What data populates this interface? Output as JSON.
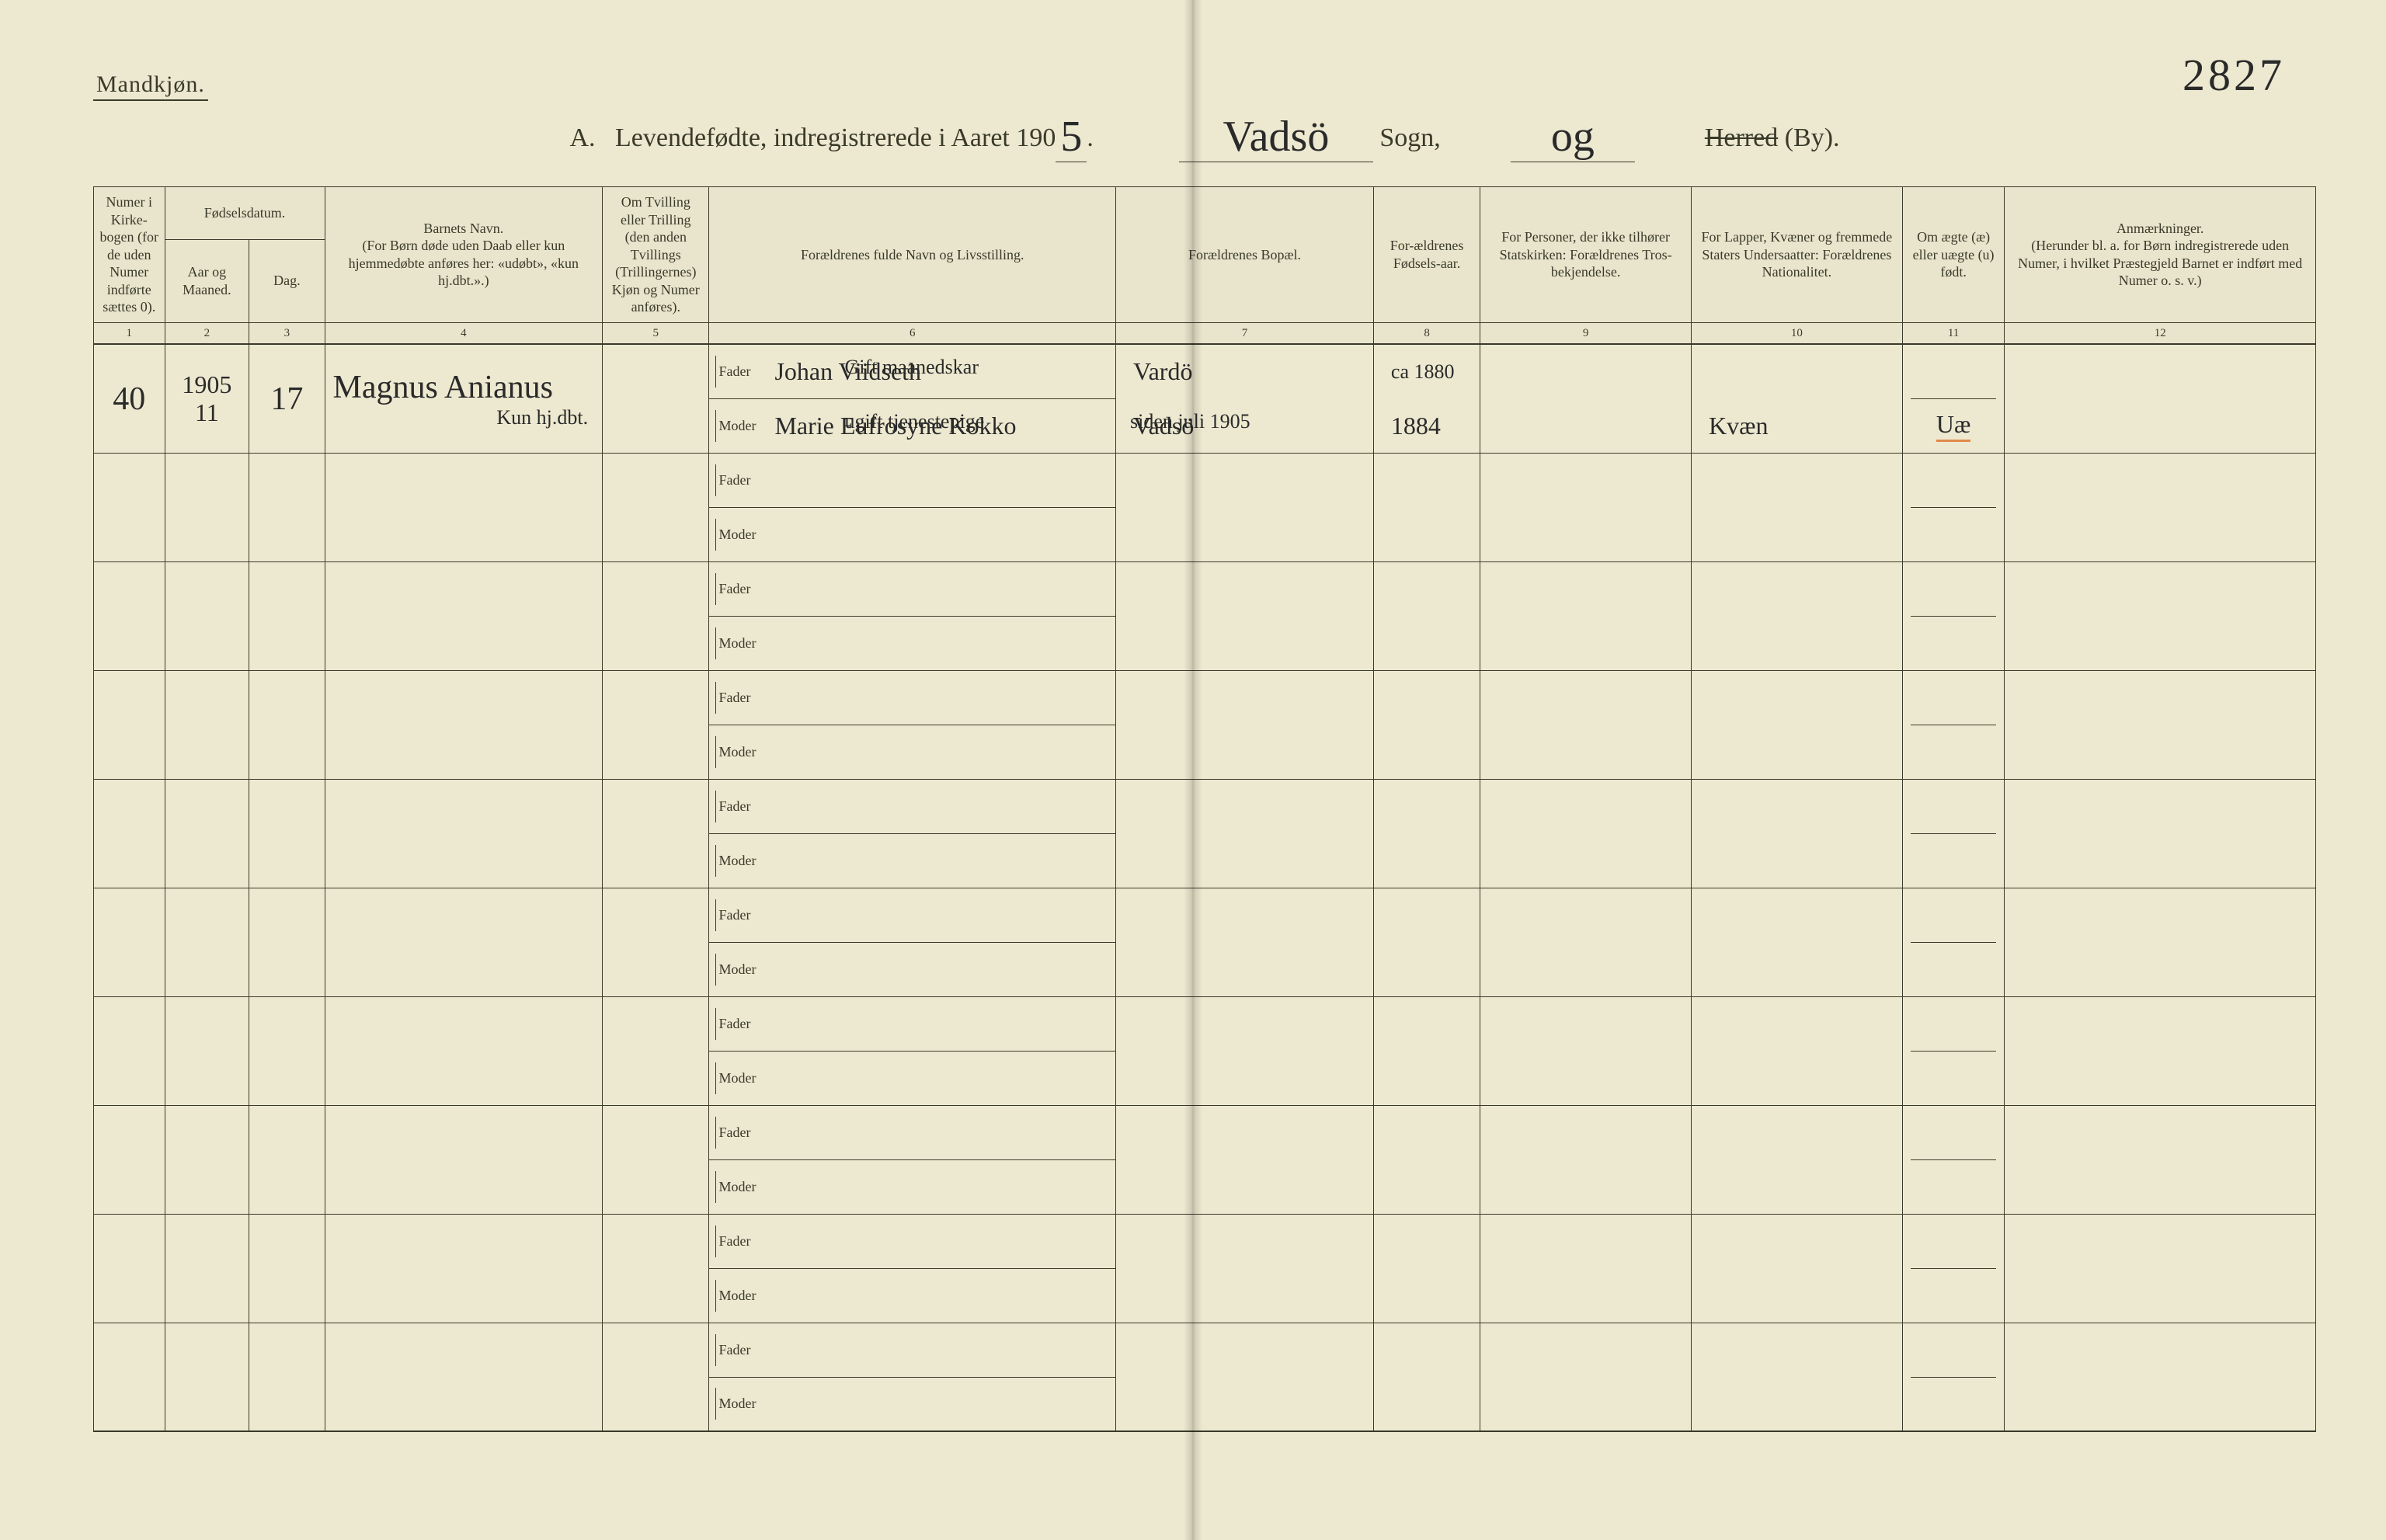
{
  "page_number_hand": "2827",
  "gender_heading": "Mandkjøn.",
  "title": {
    "prefix": "A.   Levendefødte, indregistrerede i Aaret 190",
    "year_last_digit": "5",
    "year_period": ".",
    "sogn_value": "Vadsö",
    "sogn_label": " Sogn,",
    "og_value": "og",
    "herred_label": "Herred",
    "by_label": " (By)."
  },
  "columns": {
    "c1": "Numer i Kirke-bogen (for de uden Numer indførte sættes 0).",
    "c2_group": "Fødselsdatum.",
    "c2": "Aar og Maaned.",
    "c3": "Dag.",
    "c4": "Barnets Navn.\n(For Børn døde uden Daab eller kun hjemmedøbte anføres her: «udøbt», «kun hj.dbt.».)",
    "c5": "Om Tvilling eller Trilling (den anden Tvillings (Trillingernes) Kjøn og Numer anføres).",
    "c6": "Forældrenes fulde Navn og Livsstilling.",
    "c7": "Forældrenes Bopæl.",
    "c8": "For-ældrenes Fødsels-aar.",
    "c9": "For Personer, der ikke tilhører Statskirken: Forældrenes Tros-bekjendelse.",
    "c10": "For Lapper, Kvæner og fremmede Staters Undersaatter: Forældrenes Nationalitet.",
    "c11": "Om ægte (æ) eller uægte (u) født.",
    "c12": "Anmærkninger.\n(Herunder bl. a. for Børn indregistrerede uden Numer, i hvilket Præstegjeld Barnet er indført med Numer o. s. v.)"
  },
  "colnums": [
    "1",
    "2",
    "3",
    "4",
    "5",
    "6",
    "7",
    "8",
    "9",
    "10",
    "11",
    "12"
  ],
  "fader_label": "Fader",
  "moder_label": "Moder",
  "records": [
    {
      "num": "40",
      "year_month": "1905\n11",
      "day": "17",
      "child_name": "Magnus Anianus",
      "child_note": "Kun hj.dbt.",
      "father_occ": "Gift maanedskar",
      "father_name": "Johan Viidseth",
      "mother_occ": "ugift tjenestepige",
      "mother_name": "Marie Eufrosyne Kokko",
      "father_residence": "Vardö",
      "mother_residence_note": "siden juli 1905",
      "mother_residence": "Vadsö",
      "father_birth": "ca 1880",
      "mother_birth": "1884",
      "father_rel": "",
      "mother_rel": "",
      "father_nat": "",
      "mother_nat": "Kvæn",
      "legit": "Uæ",
      "remarks": ""
    },
    {},
    {},
    {},
    {},
    {},
    {},
    {},
    {},
    {}
  ],
  "style": {
    "bg": "#ede9d0",
    "ink": "#3a3a2a",
    "hand_ink": "#2a2a2a",
    "pagenum_ink": "#6a82c0",
    "red_underline": "#e08a4a"
  }
}
